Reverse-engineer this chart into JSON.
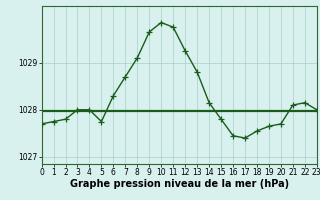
{
  "hours": [
    0,
    1,
    2,
    3,
    4,
    5,
    6,
    7,
    8,
    9,
    10,
    11,
    12,
    13,
    14,
    15,
    16,
    17,
    18,
    19,
    20,
    21,
    22,
    23
  ],
  "pressure": [
    1027.7,
    1027.75,
    1027.8,
    1028.0,
    1028.0,
    1027.75,
    1028.3,
    1028.7,
    1029.1,
    1029.65,
    1029.85,
    1029.75,
    1029.25,
    1028.8,
    1028.15,
    1027.8,
    1027.45,
    1027.4,
    1027.55,
    1027.65,
    1027.7,
    1028.1,
    1028.15,
    1028.0
  ],
  "avg_line": 1027.98,
  "line_color": "#1a5c1a",
  "marker": "+",
  "marker_size": 4,
  "bg_color": "#d8f0ee",
  "grid_color": "#aacfcc",
  "title": "Graphe pression niveau de la mer (hPa)",
  "ylim": [
    1026.85,
    1030.2
  ],
  "yticks": [
    1027,
    1028,
    1029
  ],
  "xlim": [
    0,
    23
  ],
  "xticks": [
    0,
    1,
    2,
    3,
    4,
    5,
    6,
    7,
    8,
    9,
    10,
    11,
    12,
    13,
    14,
    15,
    16,
    17,
    18,
    19,
    20,
    21,
    22,
    23
  ],
  "tick_fontsize": 5.5,
  "title_fontsize": 7.0,
  "linewidth": 1.0,
  "avg_linewidth": 1.6
}
